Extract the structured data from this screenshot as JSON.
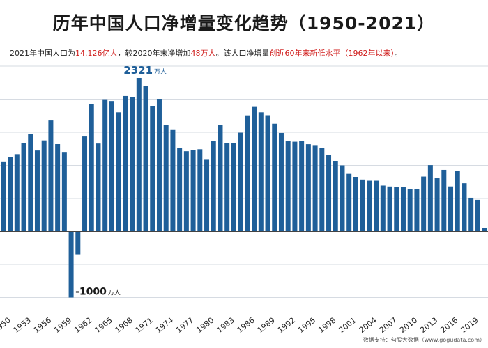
{
  "header": {
    "title": "历年中国人口净增量变化趋势（1950-2021）",
    "subtitle": {
      "p1": "2021年中国人口为",
      "v1": "14.126亿人",
      "p2": "，较2020年末净增加",
      "v2": "48万人",
      "p3": "。该人口净增量",
      "v3": "创近60年来新低水平（1962年以来）",
      "p4": "。"
    }
  },
  "annotations": {
    "max_value": "2321",
    "max_unit": "万人",
    "min_value": "-1000",
    "min_unit": "万人"
  },
  "credit": "数据支持：勾股大数据（www.gogudata.com）",
  "colors": {
    "bar": "#1f5f99",
    "highlight": "#d0201f"
  },
  "chart_data": {
    "type": "bar",
    "x": [
      1950,
      1951,
      1952,
      1953,
      1954,
      1955,
      1956,
      1957,
      1958,
      1959,
      1960,
      1961,
      1962,
      1963,
      1964,
      1965,
      1966,
      1967,
      1968,
      1969,
      1970,
      1971,
      1972,
      1973,
      1974,
      1975,
      1976,
      1977,
      1978,
      1979,
      1980,
      1981,
      1982,
      1983,
      1984,
      1985,
      1986,
      1987,
      1988,
      1989,
      1990,
      1991,
      1992,
      1993,
      1994,
      1995,
      1996,
      1997,
      1998,
      1999,
      2000,
      2001,
      2002,
      2003,
      2004,
      2005,
      2006,
      2007,
      2008,
      2009,
      2010,
      2011,
      2012,
      2013,
      2014,
      2015,
      2016,
      2017,
      2018,
      2019,
      2020,
      2021
    ],
    "values": [
      1049,
      1129,
      1170,
      1338,
      1475,
      1225,
      1377,
      1678,
      1321,
      1193,
      -1000,
      -348,
      1436,
      1926,
      1330,
      1999,
      1972,
      1802,
      2048,
      2032,
      2321,
      2196,
      1896,
      2005,
      1609,
      1534,
      1267,
      1214,
      1233,
      1244,
      1085,
      1370,
      1614,
      1334,
      1337,
      1494,
      1756,
      1883,
      1802,
      1758,
      1629,
      1490,
      1363,
      1357,
      1365,
      1320,
      1296,
      1260,
      1160,
      1064,
      1000,
      872,
      816,
      786,
      768,
      768,
      695,
      681,
      673,
      672,
      641,
      644,
      831,
      1004,
      805,
      932,
      682,
      916,
      730,
      511,
      480,
      48
    ],
    "categories": [
      "1950",
      "1953",
      "1956",
      "1959",
      "1962",
      "1965",
      "1968",
      "1971",
      "1974",
      "1977",
      "1980",
      "1983",
      "1986",
      "1989",
      "1992",
      "1995",
      "1998",
      "2001",
      "2004",
      "2007",
      "2010",
      "2013",
      "2016",
      "2019"
    ],
    "ylim": [
      -1100,
      2500
    ],
    "grid": true,
    "legend": "none"
  }
}
